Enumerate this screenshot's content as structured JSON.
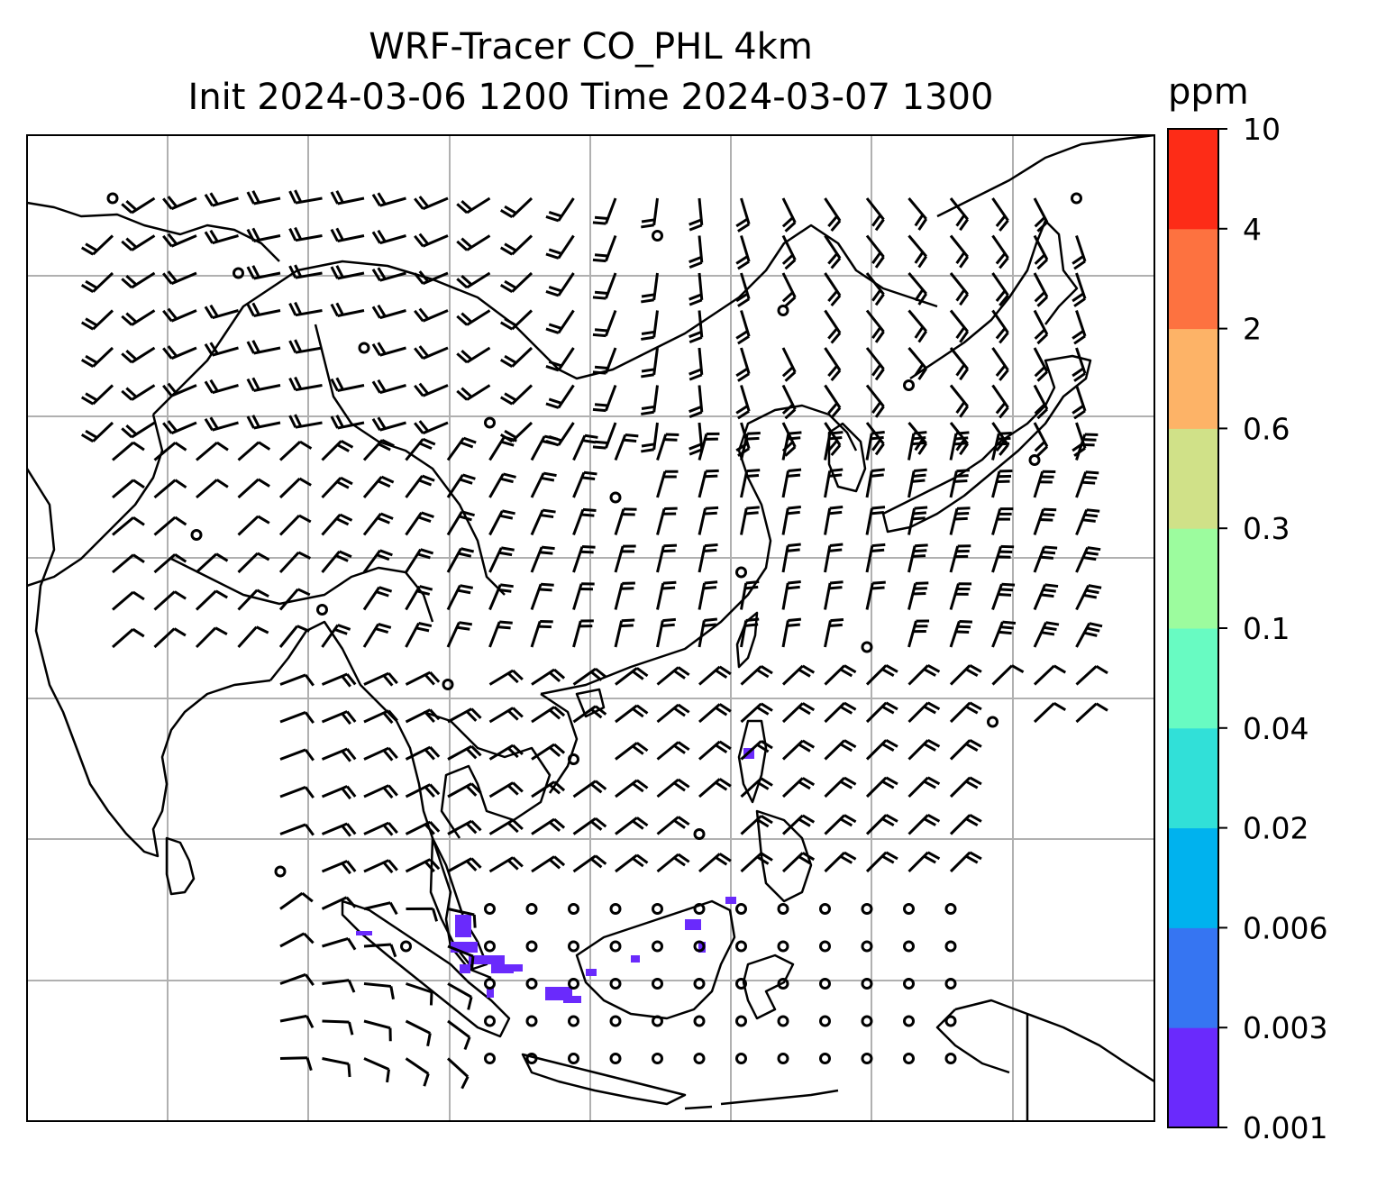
{
  "title": {
    "line1": "WRF-Tracer CO_PHL 4km",
    "line2": "Init 2024-03-06 1200 Time 2024-03-07 1300"
  },
  "colorbar": {
    "units": "ppm",
    "levels": [
      "0.001",
      "0.003",
      "0.006",
      "0.02",
      "0.04",
      "0.1",
      "0.3",
      "0.6",
      "2",
      "4",
      "10"
    ],
    "colors": [
      "#6a2afc",
      "#3675f2",
      "#00b2ee",
      "#31e0d8",
      "#68fbc2",
      "#9cfc9e",
      "#d0e188",
      "#fdb367",
      "#fd7240",
      "#fd2c17"
    ]
  },
  "map": {
    "coastline_color": "#000000",
    "gridline_color": "#b0b0b0",
    "tracer_color": "#6a2afc",
    "wind_barb_color": "#000000"
  }
}
